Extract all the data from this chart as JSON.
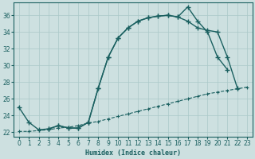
{
  "xlabel": "Humidex (Indice chaleur)",
  "bg_color": "#cde0e0",
  "grid_color": "#aac8c8",
  "line_color": "#1a6060",
  "xlim": [
    -0.5,
    23.5
  ],
  "ylim": [
    21.5,
    37.5
  ],
  "yticks": [
    22,
    24,
    26,
    28,
    30,
    32,
    34,
    36
  ],
  "xticks": [
    0,
    1,
    2,
    3,
    4,
    5,
    6,
    7,
    8,
    9,
    10,
    11,
    12,
    13,
    14,
    15,
    16,
    17,
    18,
    19,
    20,
    21,
    22,
    23
  ],
  "line1_x": [
    0,
    1,
    2,
    3,
    4,
    5,
    6,
    7,
    8,
    9,
    10,
    11,
    12,
    13,
    14,
    15,
    16,
    17,
    18,
    19,
    20,
    21
  ],
  "line1_y": [
    25.0,
    23.2,
    22.3,
    22.4,
    22.8,
    22.5,
    22.5,
    23.2,
    27.3,
    31.0,
    33.3,
    34.5,
    35.3,
    35.7,
    35.9,
    36.0,
    35.8,
    37.0,
    35.3,
    34.0,
    31.0,
    29.5
  ],
  "line2_x": [
    3,
    4,
    5,
    6,
    7,
    8,
    9,
    10,
    11,
    12,
    13,
    14,
    15,
    16,
    17,
    18,
    19,
    20,
    21,
    22
  ],
  "line2_y": [
    22.4,
    22.8,
    22.5,
    22.5,
    23.2,
    27.3,
    31.0,
    33.3,
    34.5,
    35.3,
    35.7,
    35.9,
    36.0,
    35.8,
    35.3,
    34.5,
    34.2,
    34.0,
    31.0,
    27.3
  ],
  "line3_x": [
    0,
    1,
    2,
    3,
    4,
    5,
    6,
    7,
    8,
    9,
    10,
    11,
    12,
    13,
    14,
    15,
    16,
    17,
    18,
    19,
    20,
    21,
    22,
    23
  ],
  "line3_y": [
    22.1,
    22.1,
    22.2,
    22.3,
    22.5,
    22.6,
    22.8,
    23.1,
    23.3,
    23.6,
    23.9,
    24.2,
    24.5,
    24.8,
    25.1,
    25.4,
    25.7,
    26.0,
    26.3,
    26.6,
    26.8,
    27.0,
    27.2,
    27.4
  ]
}
